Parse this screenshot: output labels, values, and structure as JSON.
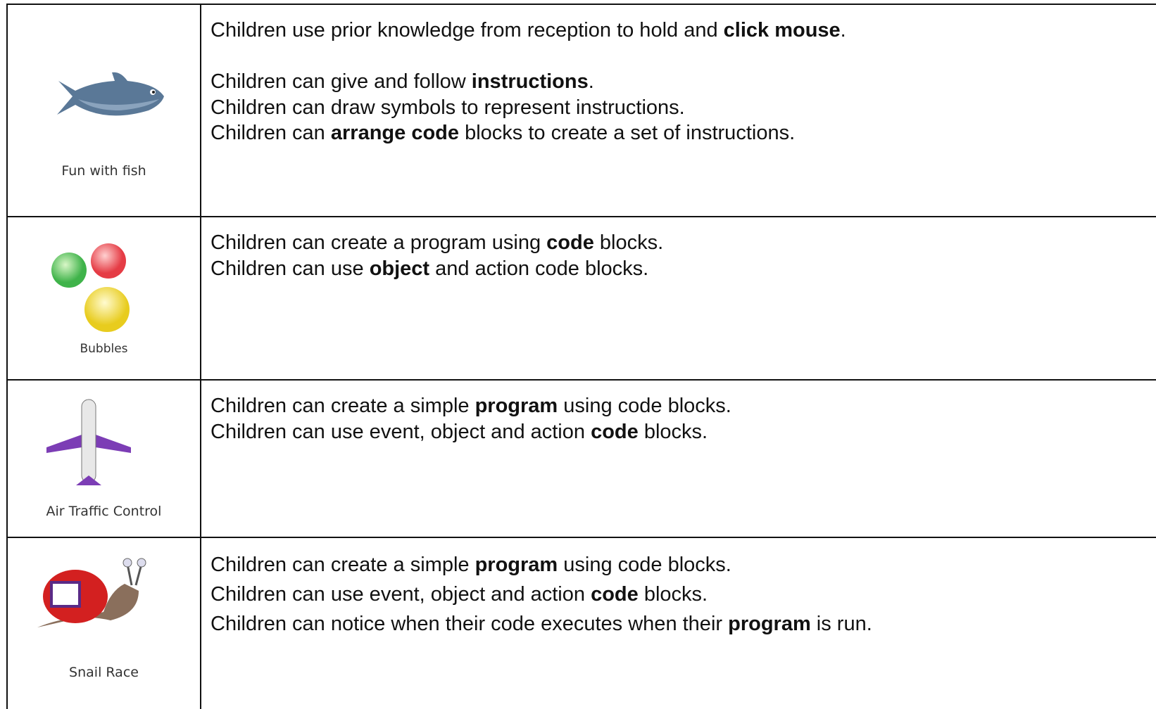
{
  "table": {
    "rows": [
      {
        "label": "Fun with fish",
        "paragraphs": [
          [
            [
              {
                "text": "Children use prior knowledge from reception to hold and "
              },
              {
                "text": "click mouse",
                "bold": true
              },
              {
                "text": "."
              }
            ]
          ],
          [
            [
              {
                "text": "Children can give and follow "
              },
              {
                "text": "instructions",
                "bold": true
              },
              {
                "text": "."
              }
            ],
            [
              {
                "text": "Children can draw symbols to represent instructions."
              }
            ],
            [
              {
                "text": "Children can "
              },
              {
                "text": "arrange code",
                "bold": true
              },
              {
                "text": " blocks to create a set of instructions."
              }
            ]
          ]
        ]
      },
      {
        "label": "Bubbles",
        "paragraphs": [
          [
            [
              {
                "text": "Children can create a program using "
              },
              {
                "text": "code",
                "bold": true
              },
              {
                "text": " blocks."
              }
            ],
            [
              {
                "text": "Children can use "
              },
              {
                "text": "object",
                "bold": true
              },
              {
                "text": " and action code blocks."
              }
            ]
          ]
        ]
      },
      {
        "label": "Air Traffic Control",
        "paragraphs": [
          [
            [
              {
                "text": "Children can create a simple "
              },
              {
                "text": "program",
                "bold": true
              },
              {
                "text": " using code blocks."
              }
            ],
            [
              {
                "text": "Children can use event, object and action "
              },
              {
                "text": "code",
                "bold": true
              },
              {
                "text": " blocks."
              }
            ]
          ]
        ]
      },
      {
        "label": "Snail Race",
        "paragraphs": [
          [
            [
              {
                "text": "Children can create a simple "
              },
              {
                "text": "program",
                "bold": true
              },
              {
                "text": " using code blocks."
              }
            ],
            [
              {
                "text": "Children can use event, object and action "
              },
              {
                "text": "code",
                "bold": true
              },
              {
                "text": " blocks."
              }
            ],
            [
              {
                "text": "Children can notice when their code executes when their "
              },
              {
                "text": "program",
                "bold": true
              },
              {
                "text": " is run."
              }
            ]
          ]
        ]
      }
    ]
  }
}
